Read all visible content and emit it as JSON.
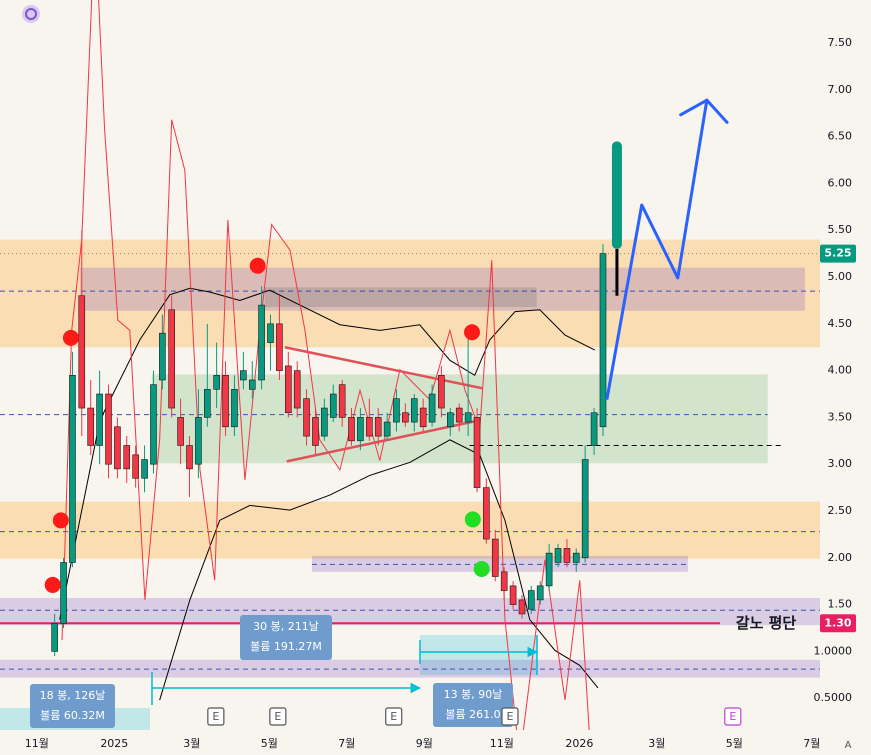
{
  "chart_data": {
    "type": "candlestick",
    "xlim": [
      -0.95,
      20.21
    ],
    "ylim": [
      0.16,
      7.96
    ],
    "xticks": [
      {
        "value": 0,
        "label": "11월"
      },
      {
        "value": 2,
        "label": "2025"
      },
      {
        "value": 4,
        "label": "3월"
      },
      {
        "value": 6,
        "label": "5월"
      },
      {
        "value": 8,
        "label": "7월"
      },
      {
        "value": 10,
        "label": "9월"
      },
      {
        "value": 12,
        "label": "11월"
      },
      {
        "value": 14,
        "label": "2026"
      },
      {
        "value": 16,
        "label": "3월"
      },
      {
        "value": 18,
        "label": "5월"
      },
      {
        "value": 20,
        "label": "7월"
      }
    ],
    "yticks": [
      {
        "value": 7.5,
        "label": "7.50"
      },
      {
        "value": 7,
        "label": "7.00"
      },
      {
        "value": 6.5,
        "label": "6.50"
      },
      {
        "value": 6,
        "label": "6.00"
      },
      {
        "value": 5.5,
        "label": "5.50"
      },
      {
        "value": 5,
        "label": "5.00"
      },
      {
        "value": 4.5,
        "label": "4.50"
      },
      {
        "value": 4,
        "label": "4.00"
      },
      {
        "value": 3.5,
        "label": "3.50"
      },
      {
        "value": 3,
        "label": "3.00"
      },
      {
        "value": 2.5,
        "label": "2.50"
      },
      {
        "value": 2,
        "label": "2.00"
      },
      {
        "value": 1.5,
        "label": "1.50"
      },
      {
        "value": 1,
        "label": "1.0000"
      },
      {
        "value": 0.5,
        "label": "0.5000"
      }
    ],
    "grid": false,
    "up_color": "#089981",
    "down_color": "#f23645",
    "x": [
      0.46,
      0.69,
      0.92,
      1.16,
      1.39,
      1.62,
      1.85,
      2.08,
      2.32,
      2.55,
      2.78,
      3.01,
      3.24,
      3.48,
      3.71,
      3.94,
      4.17,
      4.4,
      4.64,
      4.87,
      5.1,
      5.33,
      5.56,
      5.8,
      6.03,
      6.26,
      6.49,
      6.72,
      6.96,
      7.19,
      7.42,
      7.65,
      7.88,
      8.12,
      8.35,
      8.58,
      8.81,
      9.04,
      9.28,
      9.51,
      9.74,
      9.97,
      10.2,
      10.44,
      10.67,
      10.9,
      11.13,
      11.36,
      11.6,
      11.83,
      12.06,
      12.29,
      12.52,
      12.76,
      12.99,
      13.22,
      13.45,
      13.68,
      13.92,
      14.15,
      14.38,
      14.61
    ],
    "open": [
      1.0,
      1.3,
      1.95,
      4.8,
      3.6,
      3.2,
      3.75,
      3.4,
      3.2,
      3.1,
      2.85,
      3.0,
      3.9,
      4.65,
      3.5,
      3.2,
      3.0,
      3.5,
      3.8,
      3.95,
      3.4,
      3.9,
      3.8,
      3.9,
      4.3,
      4.5,
      4.05,
      4.0,
      3.7,
      3.5,
      3.3,
      3.5,
      3.85,
      3.5,
      3.25,
      3.5,
      3.5,
      3.3,
      3.45,
      3.55,
      3.45,
      3.6,
      3.45,
      3.95,
      3.4,
      3.6,
      3.45,
      3.5,
      2.75,
      2.2,
      1.85,
      1.7,
      1.55,
      1.45,
      1.55,
      1.7,
      1.95,
      2.1,
      1.95,
      2.0,
      3.2,
      3.4
    ],
    "high": [
      1.4,
      2.0,
      4.2,
      5.5,
      3.9,
      4.0,
      3.85,
      3.5,
      3.3,
      3.2,
      3.2,
      4.0,
      4.6,
      4.8,
      3.7,
      3.3,
      3.8,
      4.5,
      4.3,
      4.1,
      3.95,
      4.2,
      4.1,
      4.9,
      4.6,
      4.8,
      4.2,
      4.1,
      3.8,
      3.6,
      3.7,
      3.85,
      3.9,
      3.6,
      3.6,
      3.7,
      3.6,
      3.55,
      3.8,
      3.65,
      3.75,
      3.7,
      3.85,
      4.05,
      3.6,
      3.65,
      4.4,
      3.6,
      2.85,
      2.3,
      1.9,
      1.75,
      1.6,
      1.7,
      1.75,
      2.15,
      2.15,
      2.2,
      2.1,
      3.2,
      3.6,
      5.35
    ],
    "low": [
      0.95,
      1.25,
      1.9,
      3.3,
      3.1,
      3.0,
      2.85,
      2.85,
      2.8,
      2.75,
      2.7,
      2.9,
      3.8,
      3.5,
      3.0,
      2.65,
      2.85,
      3.4,
      3.6,
      3.3,
      3.3,
      3.8,
      3.7,
      3.8,
      4.0,
      3.9,
      3.5,
      3.5,
      3.2,
      3.1,
      3.25,
      3.45,
      3.4,
      3.2,
      3.15,
      3.25,
      3.2,
      3.25,
      3.35,
      3.4,
      3.35,
      3.35,
      3.4,
      3.5,
      3.3,
      3.35,
      3.3,
      2.7,
      2.15,
      1.75,
      1.55,
      1.45,
      1.35,
      1.4,
      1.5,
      1.65,
      1.9,
      1.9,
      1.85,
      1.95,
      3.1,
      3.3
    ],
    "close": [
      1.3,
      1.95,
      3.95,
      3.6,
      3.2,
      3.75,
      3.0,
      2.95,
      2.95,
      2.85,
      3.05,
      3.85,
      4.4,
      3.6,
      3.2,
      2.95,
      3.5,
      3.8,
      3.95,
      3.4,
      3.8,
      4.0,
      3.9,
      4.7,
      4.5,
      4.0,
      3.55,
      3.6,
      3.3,
      3.2,
      3.6,
      3.75,
      3.5,
      3.25,
      3.5,
      3.3,
      3.3,
      3.45,
      3.7,
      3.45,
      3.7,
      3.4,
      3.75,
      3.6,
      3.55,
      3.45,
      3.55,
      2.75,
      2.2,
      1.8,
      1.65,
      1.5,
      1.4,
      1.65,
      1.7,
      2.05,
      2.1,
      1.95,
      2.05,
      3.05,
      3.55,
      5.25
    ],
    "zones": [
      {
        "x": [
          -0.95,
          20.21
        ],
        "y": [
          4.25,
          5.4
        ],
        "color": "rgba(255,152,0,0.25)"
      },
      {
        "x": [
          -0.95,
          20.21
        ],
        "y": [
          1.99,
          2.6
        ],
        "color": "rgba(255,152,0,0.25)"
      },
      {
        "x": [
          1.11,
          19.82
        ],
        "y": [
          4.64,
          5.1
        ],
        "color": "rgba(126,87,194,0.25)"
      },
      {
        "x": [
          5.88,
          12.9
        ],
        "y": [
          4.68,
          4.89
        ],
        "color": "rgba(120,120,120,0.3)"
      },
      {
        "x": [
          2.97,
          18.86
        ],
        "y": [
          3.01,
          3.96
        ],
        "color": "rgba(76,175,80,0.22)"
      },
      {
        "x": [
          7.1,
          16.8
        ],
        "y": [
          1.85,
          2.02
        ],
        "color": "rgba(126,87,194,0.25)"
      },
      {
        "x": [
          -0.95,
          20.21
        ],
        "y": [
          1.28,
          1.57
        ],
        "color": "rgba(126,87,194,0.25)"
      },
      {
        "x": [
          -0.95,
          20.21
        ],
        "y": [
          0.72,
          0.91
        ],
        "color": "rgba(126,87,194,0.25)"
      }
    ],
    "levels": [
      {
        "value": 4.85,
        "x": [
          -0.95,
          20.21
        ],
        "color": "#3f51b5",
        "style": "dashed"
      },
      {
        "value": 3.53,
        "x": [
          -0.95,
          18.86
        ],
        "color": "#3f51b5",
        "style": "dashed"
      },
      {
        "value": 2.28,
        "x": [
          -0.95,
          20.21
        ],
        "color": "#3f51b5",
        "style": "dashed"
      },
      {
        "value": 1.93,
        "x": [
          7.1,
          16.8
        ],
        "color": "#3f51b5",
        "style": "dashed"
      },
      {
        "value": 3.2,
        "x": [
          11.17,
          19.3
        ],
        "color": "#000000",
        "style": "dashed"
      },
      {
        "value": 1.44,
        "x": [
          -0.95,
          20.21
        ],
        "color": "#3f51b5",
        "style": "dashed"
      },
      {
        "value": 0.81,
        "x": [
          -0.95,
          20.21
        ],
        "color": "#3f51b5",
        "style": "dashed"
      },
      {
        "value": 5.25,
        "x": [
          -0.95,
          20.21
        ],
        "color": "#888888",
        "style": "dotted"
      },
      {
        "value": 1.3,
        "x": [
          -0.95,
          17.63
        ],
        "color": "#e91e63",
        "style": "solid"
      }
    ],
    "overlays": [
      {
        "type": "line",
        "color": "#000000",
        "width": 1,
        "x": [
          0.59,
          1.63,
          2.66,
          3.43,
          3.95,
          4.46,
          5.24,
          6.01,
          6.79,
          7.82,
          8.85,
          9.88,
          10.66,
          11.3,
          11.69,
          12.34,
          12.98,
          13.63,
          14.4
        ],
        "values": [
          1.34,
          3.47,
          4.33,
          4.81,
          4.88,
          4.84,
          4.75,
          4.86,
          4.7,
          4.49,
          4.43,
          4.49,
          4.11,
          3.95,
          4.33,
          4.63,
          4.65,
          4.38,
          4.22
        ]
      },
      {
        "type": "line",
        "color": "#000000",
        "width": 1,
        "x": [
          3.17,
          3.95,
          4.72,
          5.5,
          6.53,
          7.56,
          8.59,
          9.63,
          10.66,
          11.43,
          12.08,
          12.72,
          13.37,
          14.01,
          14.48
        ],
        "values": [
          0.48,
          1.55,
          2.4,
          2.56,
          2.51,
          2.67,
          2.88,
          3.02,
          3.26,
          3.1,
          2.4,
          1.34,
          1.01,
          0.85,
          0.61
        ]
      },
      {
        "type": "line",
        "color": "#f23645",
        "width": 1,
        "x": [
          0.65,
          0.9,
          1.16,
          1.5,
          1.75,
          2.09,
          2.4,
          2.79,
          3.17,
          3.48,
          3.82,
          4.21,
          4.59,
          4.93,
          5.37,
          5.75,
          6.06,
          6.53,
          6.92,
          7.3,
          7.82,
          8.34,
          8.85,
          9.37,
          10.14,
          10.66,
          11.05,
          11.43,
          11.74,
          12.08,
          12.46,
          13.11,
          13.63,
          14.01,
          14.27
        ],
        "values": [
          1.12,
          4.43,
          5.4,
          8.81,
          6.57,
          4.54,
          4.43,
          1.55,
          3.26,
          6.68,
          6.14,
          2.94,
          1.76,
          5.61,
          2.83,
          4.43,
          5.56,
          5.29,
          4.43,
          3.26,
          2.94,
          3.79,
          3.04,
          4.01,
          3.69,
          4.43,
          3.79,
          3.37,
          5.18,
          1.34,
          -0.16,
          1.98,
          0.48,
          1.76,
          0.05
        ]
      },
      {
        "type": "line",
        "color": "#e0525a",
        "width": 2.5,
        "x": [
          6.4,
          11.51
        ],
        "values": [
          4.25,
          3.81
        ]
      },
      {
        "type": "line",
        "color": "#e0525a",
        "width": 2.5,
        "x": [
          6.45,
          11.43
        ],
        "values": [
          3.03,
          3.47
        ]
      }
    ],
    "signals": {
      "x": [
        5.7,
        0.88,
        0.62,
        0.41,
        11.23,
        11.25,
        11.48
      ],
      "values": [
        5.12,
        4.35,
        2.4,
        1.71,
        4.41,
        2.41,
        1.88
      ],
      "colors": [
        "#ff1a1a",
        "#ff1a1a",
        "#ff1a1a",
        "#ff1a1a",
        "#ff1a1a",
        "#22dd22",
        "#22dd22"
      ]
    },
    "projection": {
      "color": "#2962ff",
      "x": [
        14.71,
        15.61,
        16.54,
        17.29
      ],
      "values": [
        3.69,
        5.77,
        4.99,
        6.89
      ]
    },
    "projected_candle": {
      "x": 14.97,
      "open": 5.3,
      "close": 6.45,
      "low": 4.8,
      "color": "#089981"
    },
    "price_labels": [
      {
        "value": 5.25,
        "label": "5.25",
        "color": "#089981"
      },
      {
        "value": 1.3,
        "label": "1.30",
        "color": "#e91e63"
      }
    ],
    "level_annotation": {
      "value": 1.3,
      "text": "갈노 평단"
    },
    "measures": [
      {
        "lines": [
          "30 봉, 211날",
          "볼륨 191.27M"
        ]
      },
      {
        "lines": [
          "18 봉, 126날",
          "볼륨 60.32M"
        ]
      },
      {
        "lines": [
          "13 봉, 90날",
          "볼륨 261.0"
        ]
      }
    ],
    "events": {
      "x": [
        4.62,
        6.22,
        9.21,
        12.21,
        17.96
      ],
      "labels": [
        "E",
        "E",
        "E",
        "E",
        "E"
      ],
      "colors": [
        "#555555",
        "#555555",
        "#555555",
        "#555555",
        "#c13fd6"
      ]
    },
    "corner_label": "A"
  }
}
